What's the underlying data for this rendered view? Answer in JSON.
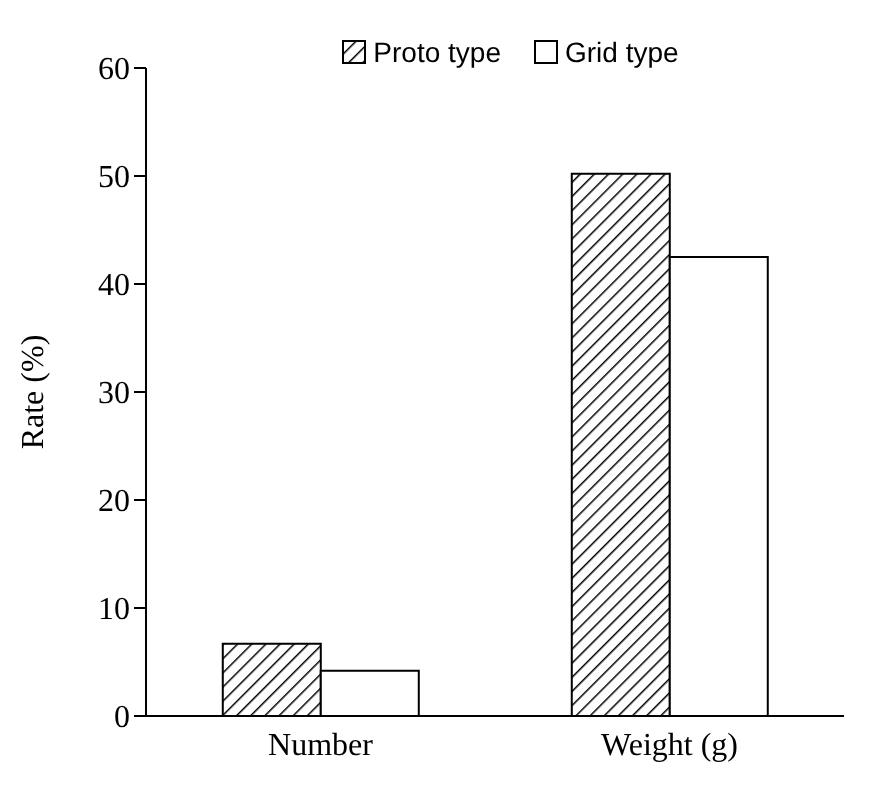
{
  "chart_data": {
    "type": "bar",
    "ylabel": "Rate (%)",
    "categories": [
      "Number",
      "Weight (g)"
    ],
    "series": [
      {
        "name": "Proto type",
        "color": "#000000",
        "values": [
          6.7,
          50.2
        ]
      },
      {
        "name": "Grid type",
        "color": "#ffffff",
        "values": [
          4.2,
          42.5
        ]
      }
    ],
    "ylim": [
      0,
      60
    ],
    "yticks": [
      0,
      10,
      20,
      30,
      40,
      50,
      60
    ],
    "grid": false,
    "legend": "top"
  }
}
